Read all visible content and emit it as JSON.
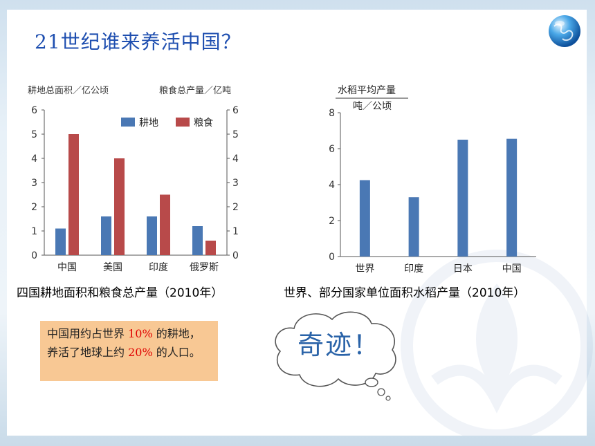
{
  "slide": {
    "title": "21世纪谁来养活中国？",
    "note": {
      "part1": "中国用约占世界",
      "pct1": "10%",
      "part2": " 的耕地，养活了地球上约",
      "pct2": "20%",
      "part3": " 的人口。"
    },
    "cloud_text": "奇迹！"
  },
  "colors": {
    "blue": "#4a78b4",
    "red": "#b84a4a",
    "title": "#1f4fb0",
    "highlight": "#e00000"
  },
  "chart_data": [
    {
      "type": "bar",
      "caption": "四国耕地面积和粮食总产量（2010年）",
      "ylabel_left": "耕地总面积／亿公顷",
      "ylabel_right": "粮食总产量／亿吨",
      "categories": [
        "中国",
        "美国",
        "印度",
        "俄罗斯"
      ],
      "series": [
        {
          "name": "耕地",
          "color": "#4a78b4",
          "values": [
            1.1,
            1.6,
            1.6,
            1.2
          ]
        },
        {
          "name": "粮食",
          "color": "#b84a4a",
          "values": [
            5.0,
            4.0,
            2.5,
            0.6
          ]
        }
      ],
      "ylim": [
        0,
        6
      ],
      "yticks": [
        "0",
        "1",
        "2",
        "3",
        "4",
        "5",
        "6"
      ],
      "legend": "top-right",
      "grid": false
    },
    {
      "type": "bar",
      "caption": "世界、部分国家单位面积水稻产量（2010年）",
      "ylabel_line1": "水稻平均产量",
      "ylabel_line2": "吨／公顷",
      "categories": [
        "世界",
        "印度",
        "日本",
        "中国"
      ],
      "series": [
        {
          "color": "#4a78b4",
          "values": [
            4.25,
            3.3,
            6.5,
            6.55
          ]
        }
      ],
      "ylim": [
        0,
        8
      ],
      "yticks": [
        "0",
        "2",
        "4",
        "6",
        "8"
      ],
      "grid": false
    }
  ]
}
